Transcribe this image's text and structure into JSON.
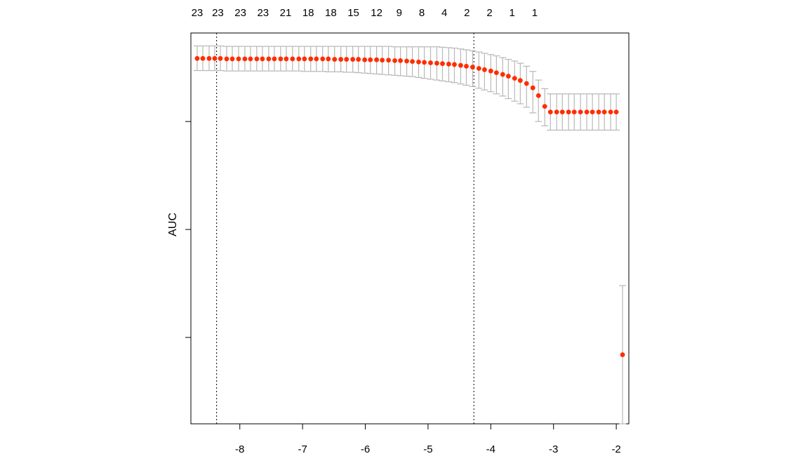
{
  "chart_data": {
    "type": "scatter",
    "title": "",
    "xlabel": "",
    "ylabel": "AUC",
    "xlim": [
      -8.78,
      -1.8
    ],
    "ylim": [
      0.0,
      0.905
    ],
    "x_ticks": [
      -8,
      -7,
      -6,
      -5,
      -4,
      -3,
      -2
    ],
    "x_tick_labels": [
      "-8",
      "-7",
      "-6",
      "-5",
      "-4",
      "-3",
      "-2"
    ],
    "y_ticks": [
      0.2,
      0.45,
      0.7
    ],
    "y_tick_labels": [
      "",
      "",
      ""
    ],
    "top_labels": [
      {
        "x": -8.68,
        "text": "23"
      },
      {
        "x": -8.35,
        "text": "23"
      },
      {
        "x": -7.99,
        "text": "23"
      },
      {
        "x": -7.63,
        "text": "23"
      },
      {
        "x": -7.27,
        "text": "21"
      },
      {
        "x": -6.91,
        "text": "18"
      },
      {
        "x": -6.55,
        "text": "18"
      },
      {
        "x": -6.19,
        "text": "15"
      },
      {
        "x": -5.82,
        "text": "12"
      },
      {
        "x": -5.46,
        "text": "9"
      },
      {
        "x": -5.1,
        "text": "8"
      },
      {
        "x": -4.74,
        "text": "4"
      },
      {
        "x": -4.38,
        "text": "2"
      },
      {
        "x": -4.02,
        "text": "2"
      },
      {
        "x": -3.66,
        "text": "1"
      },
      {
        "x": -3.3,
        "text": "1"
      }
    ],
    "vlines": [
      -8.37,
      -4.27
    ],
    "series": [
      {
        "color": "#ff2d00",
        "x": [
          -8.68,
          -8.59,
          -8.49,
          -8.4,
          -8.31,
          -8.21,
          -8.12,
          -8.02,
          -7.92,
          -7.83,
          -7.73,
          -7.64,
          -7.54,
          -7.45,
          -7.35,
          -7.26,
          -7.16,
          -7.06,
          -6.97,
          -6.87,
          -6.78,
          -6.68,
          -6.59,
          -6.49,
          -6.39,
          -6.3,
          -6.2,
          -6.11,
          -6.01,
          -5.92,
          -5.82,
          -5.73,
          -5.63,
          -5.53,
          -5.44,
          -5.34,
          -5.25,
          -5.15,
          -5.06,
          -4.96,
          -4.86,
          -4.77,
          -4.67,
          -4.58,
          -4.48,
          -4.39,
          -4.29,
          -4.19,
          -4.1,
          -4.0,
          -3.91,
          -3.81,
          -3.72,
          -3.62,
          -3.53,
          -3.43,
          -3.33,
          -3.24,
          -3.14,
          -3.05,
          -2.95,
          -2.86,
          -2.76,
          -2.67,
          -2.57,
          -2.47,
          -2.38,
          -2.28,
          -2.19,
          -2.09,
          -2.0,
          -1.9
        ],
        "y": [
          0.846,
          0.846,
          0.846,
          0.846,
          0.846,
          0.845,
          0.845,
          0.845,
          0.845,
          0.845,
          0.845,
          0.845,
          0.845,
          0.845,
          0.845,
          0.845,
          0.845,
          0.845,
          0.845,
          0.845,
          0.845,
          0.845,
          0.845,
          0.844,
          0.844,
          0.844,
          0.844,
          0.844,
          0.843,
          0.843,
          0.843,
          0.842,
          0.842,
          0.841,
          0.841,
          0.84,
          0.839,
          0.838,
          0.837,
          0.836,
          0.835,
          0.834,
          0.833,
          0.832,
          0.83,
          0.828,
          0.826,
          0.823,
          0.82,
          0.817,
          0.813,
          0.809,
          0.805,
          0.8,
          0.795,
          0.788,
          0.778,
          0.76,
          0.735,
          0.722,
          0.722,
          0.722,
          0.722,
          0.722,
          0.722,
          0.722,
          0.722,
          0.722,
          0.722,
          0.722,
          0.722,
          0.16
        ],
        "err_low": [
          0.818,
          0.818,
          0.818,
          0.818,
          0.818,
          0.817,
          0.817,
          0.817,
          0.817,
          0.817,
          0.817,
          0.817,
          0.817,
          0.817,
          0.817,
          0.817,
          0.817,
          0.817,
          0.816,
          0.816,
          0.816,
          0.816,
          0.815,
          0.815,
          0.815,
          0.814,
          0.814,
          0.813,
          0.812,
          0.811,
          0.81,
          0.809,
          0.808,
          0.807,
          0.806,
          0.805,
          0.804,
          0.802,
          0.8,
          0.798,
          0.796,
          0.794,
          0.792,
          0.79,
          0.787,
          0.784,
          0.781,
          0.777,
          0.773,
          0.769,
          0.764,
          0.759,
          0.753,
          0.747,
          0.741,
          0.733,
          0.72,
          0.7,
          0.69,
          0.68,
          0.68,
          0.68,
          0.68,
          0.68,
          0.68,
          0.68,
          0.68,
          0.68,
          0.68,
          0.68,
          0.68,
          0.0
        ],
        "err_high": [
          0.875,
          0.875,
          0.875,
          0.875,
          0.875,
          0.874,
          0.874,
          0.874,
          0.874,
          0.874,
          0.874,
          0.874,
          0.874,
          0.874,
          0.874,
          0.874,
          0.874,
          0.874,
          0.874,
          0.874,
          0.874,
          0.874,
          0.874,
          0.874,
          0.874,
          0.874,
          0.874,
          0.874,
          0.874,
          0.874,
          0.874,
          0.874,
          0.874,
          0.873,
          0.873,
          0.873,
          0.873,
          0.873,
          0.873,
          0.873,
          0.873,
          0.872,
          0.871,
          0.87,
          0.868,
          0.866,
          0.864,
          0.861,
          0.858,
          0.855,
          0.852,
          0.848,
          0.844,
          0.84,
          0.835,
          0.828,
          0.816,
          0.796,
          0.776,
          0.764,
          0.764,
          0.764,
          0.764,
          0.764,
          0.764,
          0.764,
          0.764,
          0.764,
          0.764,
          0.764,
          0.764,
          0.32
        ]
      }
    ],
    "grid": false,
    "legend": "none",
    "colors": {
      "points": "#ff2d00",
      "errorbars": "#b8b8b8",
      "vlines": "#000000",
      "axis": "#000000"
    }
  }
}
